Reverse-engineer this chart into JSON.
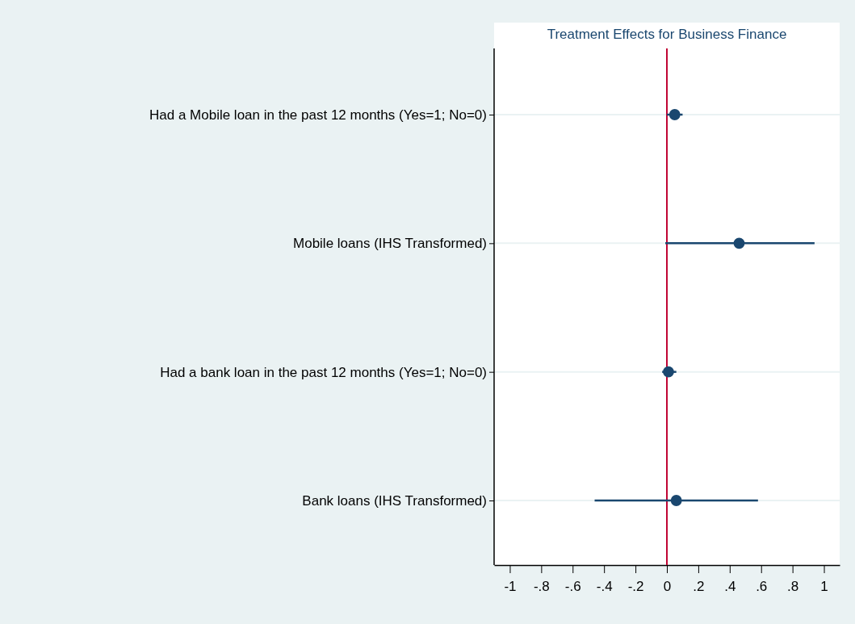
{
  "chart_data": {
    "type": "scatter",
    "orientation": "horizontal",
    "title": "Treatment Effects for Business Finance",
    "categories": [
      "Had a Mobile loan in the past 12 months (Yes=1; No=0)",
      "Mobile loans (IHS Transformed)",
      "Had a bank loan in the past 12 months (Yes=1; No=0)",
      "Bank loans (IHS Transformed)"
    ],
    "series": [
      {
        "color": "#1a476f",
        "values": [
          0.05,
          0.46,
          0.01,
          0.06
        ],
        "errors": [
          [
            0.05,
            0.05
          ],
          [
            0.47,
            0.48
          ],
          [
            0.04,
            0.05
          ],
          [
            0.52,
            0.52
          ]
        ]
      }
    ],
    "xlim": [
      -1.1,
      1.1
    ],
    "xticks": [
      -1,
      {
        "value": -0.8,
        "label": "-.8"
      },
      {
        "value": -0.6,
        "label": "-.6"
      },
      {
        "value": -0.4,
        "label": "-.4"
      },
      {
        "value": -0.2,
        "label": "-.2"
      },
      0,
      {
        "value": 0.2,
        "label": ".2"
      },
      {
        "value": 0.4,
        "label": ".4"
      },
      {
        "value": 0.6,
        "label": ".6"
      },
      {
        "value": 0.8,
        "label": ".8"
      },
      1
    ],
    "ref_lines": [
      {
        "axis": "x",
        "value": 0,
        "color": "#c10534"
      }
    ],
    "grid": "y",
    "marker": "circle"
  }
}
